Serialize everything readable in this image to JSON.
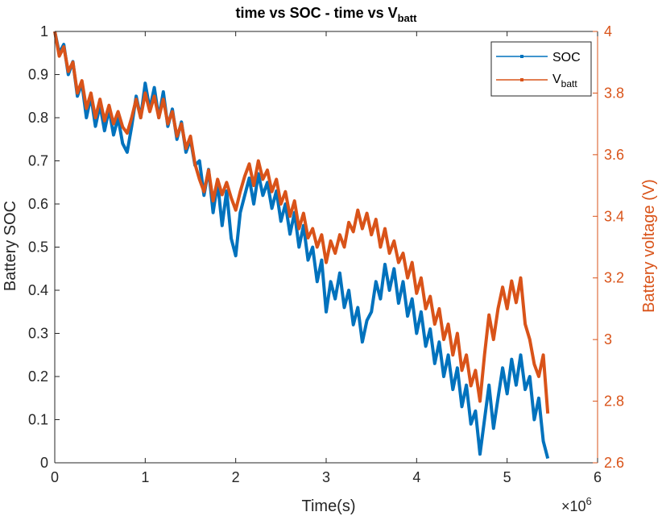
{
  "chart_data": {
    "type": "line",
    "title": {
      "main": "time vs SOC - time vs V",
      "sub": "batt"
    },
    "xlabel": "Time(s)",
    "x_exponent": {
      "base": "×10",
      "power": "6"
    },
    "ylabel_left": "Battery SOC",
    "ylabel_right": "Battery voltage (V)",
    "xlim": [
      0,
      6
    ],
    "ylim_left": [
      0,
      1
    ],
    "ylim_right": [
      2.6,
      4
    ],
    "x_ticks": [
      "0",
      "1",
      "2",
      "3",
      "4",
      "5",
      "6"
    ],
    "y_ticks_left": [
      "0",
      "0.1",
      "0.2",
      "0.3",
      "0.4",
      "0.5",
      "0.6",
      "0.7",
      "0.8",
      "0.9",
      "1"
    ],
    "y_ticks_right": [
      "2.6",
      "2.8",
      "3",
      "3.2",
      "3.4",
      "3.6",
      "3.8",
      "4"
    ],
    "legend_position": "top-right",
    "grid": false,
    "series": [
      {
        "name": "SOC",
        "name_sub": "",
        "axis": "left",
        "color": "#0072BD",
        "x": [
          0,
          0.05,
          0.1,
          0.15,
          0.2,
          0.25,
          0.3,
          0.35,
          0.4,
          0.45,
          0.5,
          0.55,
          0.6,
          0.65,
          0.7,
          0.75,
          0.8,
          0.85,
          0.9,
          0.95,
          1.0,
          1.05,
          1.1,
          1.15,
          1.2,
          1.25,
          1.3,
          1.35,
          1.4,
          1.45,
          1.5,
          1.55,
          1.6,
          1.65,
          1.7,
          1.75,
          1.8,
          1.85,
          1.9,
          1.95,
          2.0,
          2.05,
          2.1,
          2.15,
          2.2,
          2.25,
          2.3,
          2.35,
          2.4,
          2.45,
          2.5,
          2.55,
          2.6,
          2.65,
          2.7,
          2.75,
          2.8,
          2.85,
          2.9,
          2.95,
          3.0,
          3.05,
          3.1,
          3.15,
          3.2,
          3.25,
          3.3,
          3.35,
          3.4,
          3.45,
          3.5,
          3.55,
          3.6,
          3.65,
          3.7,
          3.75,
          3.8,
          3.85,
          3.9,
          3.95,
          4.0,
          4.05,
          4.1,
          4.15,
          4.2,
          4.25,
          4.3,
          4.35,
          4.4,
          4.45,
          4.5,
          4.55,
          4.6,
          4.65,
          4.7,
          4.75,
          4.8,
          4.85,
          4.9,
          4.95,
          5.0,
          5.05,
          5.1,
          5.15,
          5.2,
          5.25,
          5.3,
          5.35,
          5.4,
          5.45
        ],
        "values": [
          1.0,
          0.95,
          0.97,
          0.9,
          0.93,
          0.85,
          0.88,
          0.8,
          0.85,
          0.78,
          0.83,
          0.77,
          0.82,
          0.76,
          0.8,
          0.74,
          0.72,
          0.78,
          0.85,
          0.8,
          0.88,
          0.82,
          0.87,
          0.8,
          0.86,
          0.78,
          0.82,
          0.75,
          0.79,
          0.72,
          0.75,
          0.69,
          0.7,
          0.62,
          0.68,
          0.58,
          0.65,
          0.55,
          0.63,
          0.52,
          0.48,
          0.58,
          0.62,
          0.66,
          0.6,
          0.67,
          0.62,
          0.65,
          0.59,
          0.63,
          0.56,
          0.6,
          0.53,
          0.58,
          0.5,
          0.55,
          0.47,
          0.5,
          0.42,
          0.47,
          0.35,
          0.42,
          0.38,
          0.44,
          0.36,
          0.4,
          0.32,
          0.36,
          0.28,
          0.33,
          0.35,
          0.42,
          0.38,
          0.46,
          0.4,
          0.45,
          0.37,
          0.42,
          0.34,
          0.38,
          0.3,
          0.35,
          0.27,
          0.31,
          0.23,
          0.28,
          0.2,
          0.25,
          0.17,
          0.22,
          0.13,
          0.18,
          0.09,
          0.12,
          0.02,
          0.1,
          0.18,
          0.08,
          0.15,
          0.22,
          0.16,
          0.24,
          0.18,
          0.25,
          0.17,
          0.2,
          0.1,
          0.15,
          0.05,
          0.01
        ]
      },
      {
        "name": "V",
        "name_sub": "batt",
        "axis": "right",
        "color": "#D95319",
        "x": [
          0,
          0.05,
          0.1,
          0.15,
          0.2,
          0.25,
          0.3,
          0.35,
          0.4,
          0.45,
          0.5,
          0.55,
          0.6,
          0.65,
          0.7,
          0.75,
          0.8,
          0.85,
          0.9,
          0.95,
          1.0,
          1.05,
          1.1,
          1.15,
          1.2,
          1.25,
          1.3,
          1.35,
          1.4,
          1.45,
          1.5,
          1.55,
          1.6,
          1.65,
          1.7,
          1.75,
          1.8,
          1.85,
          1.9,
          1.95,
          2.0,
          2.05,
          2.1,
          2.15,
          2.2,
          2.25,
          2.3,
          2.35,
          2.4,
          2.45,
          2.5,
          2.55,
          2.6,
          2.65,
          2.7,
          2.75,
          2.8,
          2.85,
          2.9,
          2.95,
          3.0,
          3.05,
          3.1,
          3.15,
          3.2,
          3.25,
          3.3,
          3.35,
          3.4,
          3.45,
          3.5,
          3.55,
          3.6,
          3.65,
          3.7,
          3.75,
          3.8,
          3.85,
          3.9,
          3.95,
          4.0,
          4.05,
          4.1,
          4.15,
          4.2,
          4.25,
          4.3,
          4.35,
          4.4,
          4.45,
          4.5,
          4.55,
          4.6,
          4.65,
          4.7,
          4.75,
          4.8,
          4.85,
          4.9,
          4.95,
          5.0,
          5.05,
          5.1,
          5.15,
          5.2,
          5.25,
          5.3,
          5.35,
          5.4,
          5.45
        ],
        "values": [
          4.0,
          3.92,
          3.95,
          3.87,
          3.9,
          3.8,
          3.84,
          3.75,
          3.8,
          3.72,
          3.78,
          3.71,
          3.76,
          3.7,
          3.74,
          3.69,
          3.67,
          3.72,
          3.78,
          3.72,
          3.8,
          3.74,
          3.79,
          3.72,
          3.78,
          3.7,
          3.74,
          3.66,
          3.7,
          3.62,
          3.66,
          3.57,
          3.52,
          3.48,
          3.55,
          3.45,
          3.52,
          3.47,
          3.51,
          3.46,
          3.42,
          3.48,
          3.53,
          3.57,
          3.5,
          3.58,
          3.52,
          3.55,
          3.48,
          3.52,
          3.44,
          3.48,
          3.4,
          3.45,
          3.36,
          3.41,
          3.33,
          3.36,
          3.3,
          3.34,
          3.25,
          3.32,
          3.28,
          3.34,
          3.3,
          3.38,
          3.35,
          3.42,
          3.36,
          3.41,
          3.34,
          3.39,
          3.3,
          3.36,
          3.28,
          3.32,
          3.25,
          3.28,
          3.2,
          3.25,
          3.15,
          3.2,
          3.1,
          3.14,
          3.05,
          3.1,
          3.0,
          3.05,
          2.95,
          3.02,
          2.9,
          2.95,
          2.85,
          2.9,
          2.8,
          2.95,
          3.08,
          3.0,
          3.1,
          3.17,
          3.1,
          3.19,
          3.12,
          3.2,
          3.05,
          3.0,
          2.92,
          2.88,
          2.95,
          2.76
        ]
      }
    ]
  }
}
